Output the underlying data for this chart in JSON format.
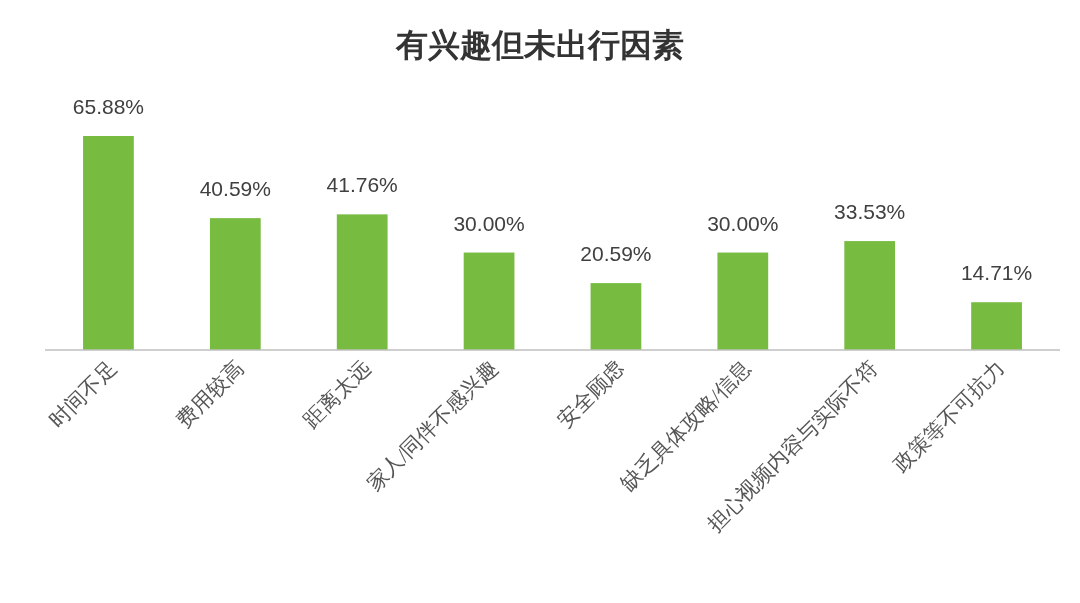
{
  "chart_data": {
    "type": "bar",
    "title": "有兴趣但未出行因素",
    "categories": [
      "时间不足",
      "费用较高",
      "距离太远",
      "家人/同伴不感兴趣",
      "安全顾虑",
      "缺乏具体攻略/信息",
      "担心视频内容与实际不符",
      "政策等不可抗力"
    ],
    "values": [
      65.88,
      40.59,
      41.76,
      30.0,
      20.59,
      30.0,
      33.53,
      14.71
    ],
    "value_labels": [
      "65.88%",
      "40.59%",
      "41.76%",
      "30.00%",
      "20.59%",
      "30.00%",
      "33.53%",
      "14.71%"
    ],
    "color": "#77bc41"
  }
}
